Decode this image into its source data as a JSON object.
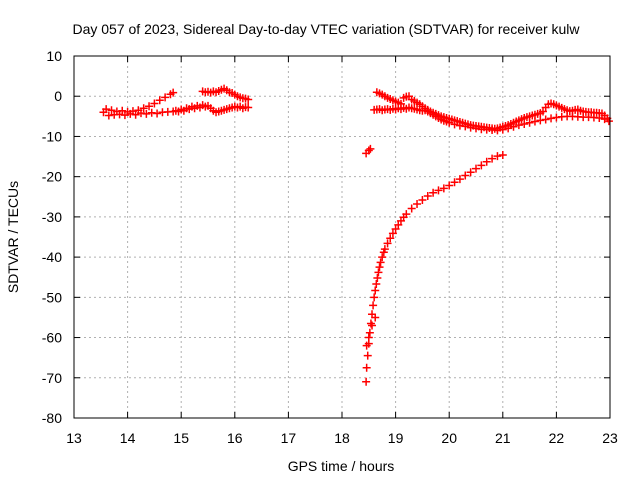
{
  "chart_data": {
    "type": "scatter",
    "title": "Day 057 of 2023, Sidereal Day-to-day VTEC variation (SDTVAR) for receiver kulw",
    "xlabel": "GPS time / hours",
    "ylabel": "SDTVAR / TECUs",
    "xlim": [
      13,
      23
    ],
    "ylim": [
      -80,
      10
    ],
    "xticks": [
      "13",
      "14",
      "15",
      "16",
      "17",
      "18",
      "19",
      "20",
      "21",
      "22",
      "23"
    ],
    "yticks": [
      "10",
      "0",
      "-10",
      "-20",
      "-30",
      "-40",
      "-50",
      "-60",
      "-70",
      "-80"
    ],
    "grid": true,
    "marker": "+",
    "colors": {
      "series": "#ff0000",
      "grid": "#b0b0b0",
      "axis": "#000000"
    },
    "series": [
      {
        "points": [
          [
            13.55,
            -4.0
          ],
          [
            13.6,
            -3.2
          ],
          [
            13.65,
            -4.8
          ],
          [
            13.7,
            -3.5
          ],
          [
            13.75,
            -4.6
          ],
          [
            13.8,
            -3.8
          ],
          [
            13.85,
            -4.5
          ],
          [
            13.9,
            -3.6
          ],
          [
            13.95,
            -4.7
          ],
          [
            14.0,
            -3.9
          ],
          [
            14.05,
            -4.4
          ],
          [
            14.1,
            -3.7
          ],
          [
            14.15,
            -4.6
          ],
          [
            14.2,
            -3.5
          ],
          [
            14.25,
            -4.2
          ],
          [
            14.3,
            -3.0
          ],
          [
            14.35,
            -4.4
          ],
          [
            14.4,
            -2.5
          ],
          [
            14.45,
            -4.1
          ],
          [
            14.5,
            -1.8
          ],
          [
            14.55,
            -4.3
          ],
          [
            14.6,
            -1.0
          ],
          [
            14.65,
            -4.0
          ],
          [
            14.7,
            -0.3
          ],
          [
            14.75,
            -3.9
          ],
          [
            14.8,
            0.5
          ],
          [
            14.85,
            0.9
          ],
          [
            14.85,
            -3.8
          ],
          [
            14.9,
            -3.6
          ],
          [
            14.95,
            -3.8
          ],
          [
            15.0,
            -3.3
          ],
          [
            15.05,
            -3.6
          ],
          [
            15.1,
            -3.0
          ],
          [
            15.15,
            -3.2
          ],
          [
            15.2,
            -2.6
          ],
          [
            15.25,
            -3.0
          ],
          [
            15.3,
            -2.4
          ],
          [
            15.35,
            -2.8
          ],
          [
            15.4,
            -2.2
          ],
          [
            15.45,
            -2.6
          ],
          [
            15.5,
            -2.4
          ],
          [
            15.55,
            -3.0
          ],
          [
            15.6,
            -3.6
          ],
          [
            15.65,
            -4.0
          ],
          [
            15.7,
            -3.8
          ],
          [
            15.75,
            -3.6
          ],
          [
            15.8,
            -3.4
          ],
          [
            15.85,
            -3.2
          ],
          [
            15.9,
            -3.0
          ],
          [
            15.95,
            -2.8
          ],
          [
            16.0,
            -2.6
          ],
          [
            16.05,
            -2.8
          ],
          [
            16.1,
            -2.6
          ],
          [
            16.15,
            -3.0
          ],
          [
            16.2,
            -2.7
          ],
          [
            16.25,
            -2.8
          ],
          [
            15.4,
            1.2
          ],
          [
            15.45,
            1.0
          ],
          [
            15.5,
            1.1
          ],
          [
            15.55,
            0.9
          ],
          [
            15.6,
            1.2
          ],
          [
            15.65,
            1.0
          ],
          [
            15.7,
            1.3
          ],
          [
            15.75,
            1.6
          ],
          [
            15.8,
            1.9
          ],
          [
            15.85,
            1.5
          ],
          [
            15.9,
            1.0
          ],
          [
            15.95,
            0.8
          ],
          [
            16.0,
            0.4
          ],
          [
            16.05,
            0.0
          ],
          [
            16.1,
            -0.3
          ],
          [
            16.15,
            -0.5
          ],
          [
            16.2,
            -0.6
          ],
          [
            16.25,
            -0.8
          ]
        ]
      },
      {
        "points": [
          [
            18.45,
            -14.2
          ],
          [
            18.5,
            -13.5
          ],
          [
            18.53,
            -13.1
          ]
        ]
      },
      {
        "points": [
          [
            18.45,
            -71.0
          ],
          [
            18.46,
            -67.5
          ],
          [
            18.48,
            -64.5
          ],
          [
            18.5,
            -61.5
          ],
          [
            18.52,
            -58.8
          ],
          [
            18.54,
            -56.5
          ],
          [
            18.56,
            -54.2
          ],
          [
            18.58,
            -52.0
          ],
          [
            18.6,
            -50.0
          ],
          [
            18.62,
            -48.3
          ],
          [
            18.64,
            -46.7
          ],
          [
            18.66,
            -45.2
          ],
          [
            18.68,
            -43.8
          ],
          [
            18.7,
            -42.5
          ],
          [
            18.72,
            -41.3
          ],
          [
            18.75,
            -40.0
          ],
          [
            18.78,
            -38.8
          ],
          [
            18.8,
            -38.0
          ],
          [
            18.85,
            -36.6
          ],
          [
            18.9,
            -35.3
          ],
          [
            18.95,
            -34.1
          ],
          [
            19.0,
            -33.0
          ],
          [
            19.05,
            -32.0
          ],
          [
            19.1,
            -31.0
          ],
          [
            19.15,
            -30.1
          ],
          [
            19.2,
            -29.3
          ],
          [
            19.3,
            -27.9
          ],
          [
            19.4,
            -26.8
          ],
          [
            19.5,
            -25.8
          ],
          [
            19.6,
            -24.8
          ],
          [
            19.7,
            -24.0
          ],
          [
            19.8,
            -23.4
          ],
          [
            19.9,
            -22.9
          ],
          [
            20.0,
            -22.2
          ],
          [
            20.1,
            -21.4
          ],
          [
            20.2,
            -20.6
          ],
          [
            20.3,
            -19.7
          ],
          [
            20.4,
            -18.9
          ],
          [
            20.5,
            -18.0
          ],
          [
            20.6,
            -17.2
          ],
          [
            20.7,
            -16.3
          ],
          [
            20.8,
            -15.5
          ],
          [
            20.9,
            -14.9
          ],
          [
            21.0,
            -14.6
          ],
          [
            18.46,
            -62.0
          ],
          [
            18.5,
            -60.0
          ],
          [
            18.56,
            -57.0
          ],
          [
            18.62,
            -55.0
          ]
        ]
      },
      {
        "points": [
          [
            18.65,
            1.0
          ],
          [
            18.7,
            0.7
          ],
          [
            18.75,
            0.4
          ],
          [
            18.8,
            0.0
          ],
          [
            18.85,
            -0.4
          ],
          [
            18.9,
            -0.7
          ],
          [
            18.95,
            -1.0
          ],
          [
            19.0,
            -1.3
          ],
          [
            19.05,
            -1.6
          ],
          [
            19.1,
            -1.9
          ],
          [
            19.15,
            -0.4
          ],
          [
            19.2,
            -0.1
          ],
          [
            19.25,
            0.0
          ],
          [
            19.3,
            -0.8
          ],
          [
            19.35,
            -1.2
          ],
          [
            19.4,
            -1.6
          ],
          [
            19.45,
            -2.0
          ],
          [
            19.5,
            -2.5
          ],
          [
            19.55,
            -3.0
          ],
          [
            19.6,
            -3.4
          ],
          [
            19.65,
            -3.8
          ],
          [
            19.7,
            -4.1
          ],
          [
            19.75,
            -4.4
          ],
          [
            19.8,
            -4.7
          ],
          [
            19.85,
            -5.0
          ],
          [
            19.9,
            -5.2
          ],
          [
            19.95,
            -5.4
          ],
          [
            20.0,
            -5.6
          ],
          [
            20.05,
            -5.8
          ],
          [
            20.1,
            -6.0
          ],
          [
            20.15,
            -6.2
          ],
          [
            20.2,
            -6.4
          ],
          [
            20.25,
            -6.6
          ],
          [
            20.3,
            -6.8
          ],
          [
            20.35,
            -7.0
          ],
          [
            20.4,
            -7.2
          ],
          [
            20.45,
            -7.3
          ],
          [
            20.5,
            -7.4
          ],
          [
            20.55,
            -7.5
          ],
          [
            20.6,
            -7.6
          ],
          [
            20.65,
            -7.7
          ],
          [
            20.7,
            -7.8
          ],
          [
            20.75,
            -7.9
          ],
          [
            20.8,
            -8.0
          ],
          [
            20.85,
            -8.1
          ],
          [
            20.9,
            -8.0
          ],
          [
            20.95,
            -7.8
          ],
          [
            21.0,
            -7.6
          ],
          [
            21.05,
            -7.4
          ],
          [
            21.1,
            -7.2
          ],
          [
            21.15,
            -6.9
          ],
          [
            21.2,
            -6.6
          ],
          [
            21.25,
            -6.3
          ],
          [
            21.3,
            -6.0
          ],
          [
            21.35,
            -5.7
          ],
          [
            21.4,
            -5.4
          ],
          [
            21.45,
            -5.2
          ],
          [
            21.5,
            -5.0
          ],
          [
            21.55,
            -4.8
          ],
          [
            21.6,
            -4.6
          ],
          [
            21.65,
            -4.4
          ],
          [
            21.7,
            -4.2
          ],
          [
            21.75,
            -3.8
          ],
          [
            21.8,
            -2.8
          ],
          [
            21.85,
            -2.0
          ],
          [
            21.9,
            -1.8
          ],
          [
            21.95,
            -2.0
          ],
          [
            22.0,
            -2.3
          ],
          [
            22.05,
            -2.6
          ],
          [
            22.1,
            -2.9
          ],
          [
            22.15,
            -3.2
          ],
          [
            22.2,
            -3.5
          ],
          [
            22.25,
            -3.7
          ],
          [
            22.3,
            -3.6
          ],
          [
            22.35,
            -3.4
          ],
          [
            22.4,
            -3.3
          ],
          [
            22.45,
            -3.6
          ],
          [
            22.5,
            -3.8
          ],
          [
            22.55,
            -3.9
          ],
          [
            22.6,
            -4.0
          ],
          [
            22.65,
            -4.0
          ],
          [
            22.7,
            -4.1
          ],
          [
            22.75,
            -4.1
          ],
          [
            22.8,
            -4.2
          ],
          [
            22.85,
            -4.3
          ],
          [
            22.9,
            -4.8
          ],
          [
            22.95,
            -5.5
          ],
          [
            18.6,
            -3.4
          ],
          [
            18.65,
            -3.3
          ],
          [
            18.7,
            -3.2
          ],
          [
            18.75,
            -3.5
          ],
          [
            18.8,
            -3.3
          ],
          [
            18.85,
            -3.2
          ],
          [
            18.9,
            -3.4
          ],
          [
            18.95,
            -3.1
          ],
          [
            19.0,
            -3.3
          ],
          [
            19.05,
            -3.0
          ],
          [
            19.1,
            -3.2
          ],
          [
            19.15,
            -2.9
          ],
          [
            19.2,
            -3.1
          ],
          [
            19.25,
            -2.8
          ],
          [
            19.3,
            -3.0
          ],
          [
            19.35,
            -3.1
          ],
          [
            19.4,
            -3.3
          ],
          [
            19.45,
            -3.5
          ],
          [
            19.5,
            -3.6
          ],
          [
            19.55,
            -3.5
          ],
          [
            19.6,
            -3.8
          ],
          [
            19.65,
            -4.2
          ],
          [
            19.7,
            -4.6
          ],
          [
            19.75,
            -5.0
          ],
          [
            19.8,
            -5.4
          ],
          [
            19.85,
            -5.8
          ],
          [
            19.9,
            -6.1
          ],
          [
            19.95,
            -6.3
          ],
          [
            20.0,
            -6.6
          ],
          [
            20.1,
            -7.0
          ],
          [
            20.2,
            -7.3
          ],
          [
            20.3,
            -7.5
          ],
          [
            20.4,
            -7.8
          ],
          [
            20.5,
            -8.0
          ],
          [
            20.6,
            -8.2
          ],
          [
            20.7,
            -8.3
          ],
          [
            20.8,
            -8.4
          ],
          [
            20.9,
            -8.5
          ],
          [
            21.0,
            -8.3
          ],
          [
            21.1,
            -8.0
          ],
          [
            21.2,
            -7.6
          ],
          [
            21.3,
            -7.2
          ],
          [
            21.4,
            -6.9
          ],
          [
            21.5,
            -6.6
          ],
          [
            21.6,
            -6.3
          ],
          [
            21.7,
            -6.0
          ],
          [
            21.8,
            -5.8
          ],
          [
            21.9,
            -5.5
          ],
          [
            22.0,
            -5.3
          ],
          [
            22.1,
            -5.1
          ],
          [
            22.2,
            -5.0
          ],
          [
            22.3,
            -5.0
          ],
          [
            22.4,
            -5.1
          ],
          [
            22.5,
            -5.2
          ],
          [
            22.6,
            -5.2
          ],
          [
            22.7,
            -5.3
          ],
          [
            22.8,
            -5.4
          ],
          [
            22.9,
            -5.7
          ],
          [
            22.98,
            -6.2
          ]
        ]
      }
    ]
  }
}
